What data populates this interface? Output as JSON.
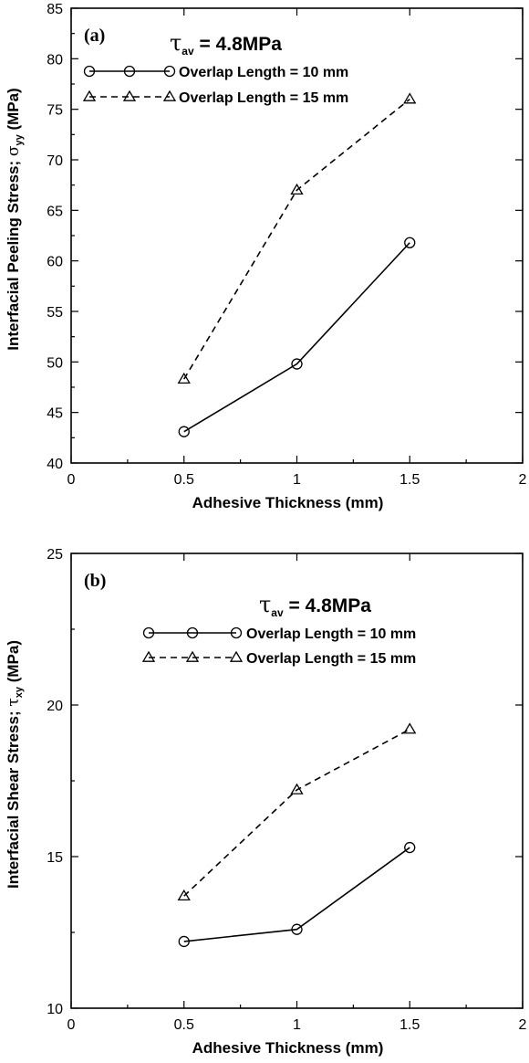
{
  "chart_data": [
    {
      "type": "line",
      "panel_label": "(a)",
      "annotation": {
        "symbol": "τ",
        "subscript": "av",
        "value": " = 4.8MPa"
      },
      "xlabel": "Adhesive Thickness (mm)",
      "ylabel": {
        "prefix": "Interfacial Peeling Stress; ",
        "symbol": "σ",
        "subscript": "yy",
        "suffix": " (MPa)"
      },
      "xlim": [
        0,
        2
      ],
      "ylim": [
        40,
        85
      ],
      "xticks": [
        "0",
        "0.5",
        "1",
        "1.5",
        "2"
      ],
      "yticks": [
        "40",
        "45",
        "50",
        "55",
        "60",
        "65",
        "70",
        "75",
        "80",
        "85"
      ],
      "x": [
        0.5,
        1,
        1.5
      ],
      "series": [
        {
          "name": "Overlap Length = 10 mm",
          "marker": "circle",
          "style": "solid",
          "values": [
            43.1,
            49.8,
            61.8
          ]
        },
        {
          "name": "Overlap Length = 15 mm",
          "marker": "triangle",
          "style": "dashed",
          "values": [
            48.3,
            67.0,
            76.0
          ]
        }
      ]
    },
    {
      "type": "line",
      "panel_label": "(b)",
      "annotation": {
        "symbol": "τ",
        "subscript": "av",
        "value": " = 4.8MPa"
      },
      "xlabel": "Adhesive Thickness (mm)",
      "ylabel": {
        "prefix": "Interfacial Shear Stress; ",
        "symbol": "τ",
        "subscript": "xy",
        "suffix": " (MPa)"
      },
      "xlim": [
        0,
        2
      ],
      "ylim": [
        10,
        25
      ],
      "xticks": [
        "0",
        "0.5",
        "1",
        "1.5",
        "2"
      ],
      "yticks": [
        "10",
        "15",
        "20",
        "25"
      ],
      "x": [
        0.5,
        1,
        1.5
      ],
      "series": [
        {
          "name": "Overlap Length = 10 mm",
          "marker": "circle",
          "style": "solid",
          "values": [
            12.2,
            12.6,
            15.3
          ]
        },
        {
          "name": "Overlap Length = 15 mm",
          "marker": "triangle",
          "style": "dashed",
          "values": [
            13.7,
            17.2,
            19.2
          ]
        }
      ]
    }
  ]
}
